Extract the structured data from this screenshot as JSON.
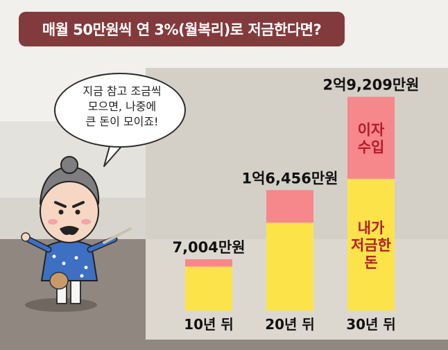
{
  "title": "매월 50만원씩 연 3%(월복리)로 저금한다면?",
  "speech_bubble": {
    "lines": [
      "지금 참고 조금씩",
      "모으면, 나중에",
      "큰 돈이 모이죠!"
    ]
  },
  "colors": {
    "title_bg": "#833a3c",
    "principal": "#fde34a",
    "interest": "#f6878a",
    "interest_text": "#b51b28",
    "panel_bg": "#d4d0c7",
    "floor": "#8f8780"
  },
  "chart_data": {
    "type": "bar",
    "stacked": true,
    "categories": [
      "10년 뒤",
      "20년 뒤",
      "30년 뒤"
    ],
    "series": [
      {
        "name": "내가 저금한 돈",
        "values": [
          6000,
          12000,
          18000
        ]
      },
      {
        "name": "이자 수입",
        "values": [
          1004,
          4456,
          11209
        ]
      }
    ],
    "totals": [
      7004,
      16456,
      29209
    ],
    "total_labels": [
      "7,004만원",
      "1억6,456만원",
      "2억9,209만원"
    ],
    "segment_labels": {
      "interest": [
        "이자",
        "수입"
      ],
      "principal": [
        "내가",
        "저금한",
        "돈"
      ]
    },
    "ylim": [
      0,
      30500
    ],
    "ylabel": "",
    "xlabel": "",
    "grid": false,
    "legend": "none"
  }
}
